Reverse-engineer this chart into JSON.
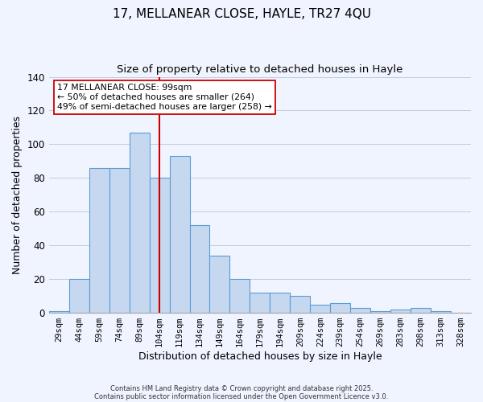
{
  "title_line1": "17, MELLANEAR CLOSE, HAYLE, TR27 4QU",
  "title_line2": "Size of property relative to detached houses in Hayle",
  "xlabel": "Distribution of detached houses by size in Hayle",
  "ylabel": "Number of detached properties",
  "bar_labels": [
    "29sqm",
    "44sqm",
    "59sqm",
    "74sqm",
    "89sqm",
    "104sqm",
    "119sqm",
    "134sqm",
    "149sqm",
    "164sqm",
    "179sqm",
    "194sqm",
    "209sqm",
    "224sqm",
    "239sqm",
    "254sqm",
    "269sqm",
    "283sqm",
    "298sqm",
    "313sqm",
    "328sqm"
  ],
  "bar_values": [
    1,
    20,
    86,
    86,
    107,
    80,
    93,
    52,
    34,
    20,
    12,
    12,
    10,
    5,
    6,
    3,
    1,
    2,
    3,
    1,
    0
  ],
  "bar_color": "#c5d8f0",
  "bar_edge_color": "#5b9bd5",
  "vline_color": "#cc0000",
  "ylim": [
    0,
    140
  ],
  "yticks": [
    0,
    20,
    40,
    60,
    80,
    100,
    120,
    140
  ],
  "annotation_title": "17 MELLANEAR CLOSE: 99sqm",
  "annotation_line1": "← 50% of detached houses are smaller (264)",
  "annotation_line2": "49% of semi-detached houses are larger (258) →",
  "annotation_box_color": "#ffffff",
  "annotation_box_edge": "#cc0000",
  "footer_line1": "Contains HM Land Registry data © Crown copyright and database right 2025.",
  "footer_line2": "Contains public sector information licensed under the Open Government Licence v3.0.",
  "background_color": "#f0f4ff",
  "grid_color": "#c0cce0"
}
